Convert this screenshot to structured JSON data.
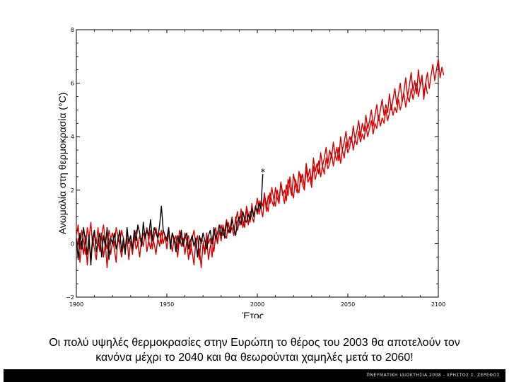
{
  "chart_data": {
    "type": "line",
    "ylabel": "Ανωμαλία στη θερμοκρασία (°C)",
    "xlabel": "Έτος",
    "xlim": [
      1900,
      2100
    ],
    "ylim": [
      -2,
      8
    ],
    "x_ticks": [
      "1900",
      "1950",
      "2000",
      "2050",
      "2100"
    ],
    "y_ticks": [
      "−2",
      "0",
      "2",
      "4",
      "6",
      "8"
    ],
    "grid": false,
    "annotation": {
      "label": "*",
      "x": 2003,
      "y": 2.6
    },
    "series": [
      {
        "color": "#000000",
        "step": 1,
        "x_start": 1900,
        "values": [
          0.2,
          -0.6,
          0.4,
          -0.2,
          0.6,
          0.1,
          -0.4,
          0.3,
          -0.8,
          0.2,
          0.5,
          -0.3,
          0.1,
          0.4,
          -0.5,
          0.3,
          -0.1,
          0.6,
          -0.6,
          0.2,
          0.0,
          0.4,
          -0.2,
          0.1,
          0.5,
          -0.3,
          0.2,
          -0.4,
          0.6,
          0.0,
          0.3,
          -0.2,
          0.5,
          0.1,
          0.7,
          0.4,
          -0.1,
          0.8,
          0.2,
          0.5,
          0.3,
          0.9,
          0.1,
          0.6,
          0.4,
          0.2,
          0.7,
          1.4,
          0.5,
          0.3,
          0.1,
          0.6,
          -0.2,
          0.4,
          0.2,
          -0.3,
          0.3,
          0.0,
          0.5,
          -0.1,
          0.2,
          0.4,
          -0.2,
          0.1,
          0.3,
          -0.1,
          0.2,
          -0.5,
          0.3,
          0.0,
          0.4,
          0.1,
          -0.2,
          0.3,
          0.5,
          0.0,
          0.6,
          0.2,
          0.4,
          0.7,
          0.3,
          0.6,
          0.2,
          0.8,
          0.5,
          0.4,
          0.9,
          0.6,
          0.3,
          0.8,
          1.0,
          0.7,
          1.2,
          0.9,
          0.8,
          1.1,
          0.9,
          1.3,
          1.0,
          1.4,
          1.2,
          1.5,
          1.3,
          2.6
        ]
      },
      {
        "color": "#e00000",
        "step": 1,
        "x_start": 1900,
        "values": [
          0.3,
          0.7,
          -0.2,
          0.5,
          0.1,
          -0.4,
          0.6,
          0.2,
          0.8,
          -0.1,
          0.4,
          0.0,
          0.6,
          -0.3,
          0.3,
          0.7,
          0.1,
          -0.2,
          0.5,
          0.2,
          0.4,
          -0.1,
          0.6,
          0.3,
          0.0,
          0.5,
          0.2,
          -0.2,
          0.4,
          0.1,
          0.3,
          -0.3,
          0.2,
          0.5,
          -0.1,
          0.3,
          0.0,
          0.4,
          0.2,
          0.6,
          0.1,
          0.5,
          -0.2,
          0.3,
          0.6,
          0.2,
          0.4,
          0.0,
          0.5,
          0.3,
          0.2,
          0.6,
          -0.1,
          0.4,
          0.1,
          0.3,
          -0.2,
          0.5,
          0.2,
          0.0,
          0.4,
          0.1,
          0.3,
          -0.4,
          0.2,
          0.5,
          0.0,
          0.3,
          -0.6,
          0.2,
          0.1,
          -0.3,
          0.4,
          0.0,
          0.2,
          -0.5,
          0.3,
          0.6,
          0.1,
          0.4,
          0.7,
          0.3,
          0.5,
          0.9,
          0.4,
          0.6,
          1.0,
          0.5,
          0.8,
          1.2,
          0.7,
          1.3,
          0.9,
          0.6,
          1.4,
          1.1,
          0.8,
          1.5,
          1.0,
          1.3,
          1.7,
          1.1,
          1.6,
          1.4,
          1.9,
          1.2,
          1.8,
          1.5,
          2.1,
          1.7,
          1.4,
          2.0,
          1.6,
          2.3,
          1.9,
          1.5,
          2.2,
          1.8,
          2.5,
          2.0,
          1.7,
          2.4,
          2.1,
          1.9,
          2.6,
          2.2,
          2.0,
          2.8,
          2.3,
          2.5,
          2.1,
          2.9,
          2.4,
          2.7,
          3.1,
          2.5,
          2.9,
          2.6,
          3.2,
          2.8,
          3.0,
          3.4,
          2.9,
          3.3,
          3.1,
          3.6,
          3.0,
          3.5,
          3.2,
          3.8,
          3.4,
          3.6,
          4.0,
          3.5,
          3.9,
          3.7,
          4.2,
          3.8,
          4.1,
          3.9,
          4.4,
          4.0,
          4.3,
          4.6,
          4.1,
          4.5,
          4.3,
          4.8,
          4.4,
          4.7,
          4.5,
          5.0,
          4.6,
          4.9,
          5.2,
          4.8,
          5.1,
          4.9,
          5.4,
          5.0,
          5.3,
          5.6,
          5.1,
          5.5,
          5.3,
          5.8,
          5.4,
          5.7,
          6.0,
          5.5,
          5.9,
          6.2,
          5.6,
          6.0,
          6.4,
          5.8,
          6.3,
          6.7,
          6.1,
          6.5,
          6.9,
          6.2,
          6.6,
          6.3
        ]
      },
      {
        "color": "#cc0000",
        "step": 1,
        "x_start": 1900,
        "values": [
          -0.3,
          0.2,
          -0.7,
          0.1,
          -0.4,
          0.3,
          -0.8,
          0.0,
          -0.5,
          0.2,
          -0.2,
          -0.6,
          0.1,
          -0.3,
          0.4,
          -0.5,
          0.0,
          -0.9,
          0.2,
          -0.4,
          0.1,
          -0.2,
          -0.7,
          0.3,
          -0.1,
          -0.5,
          0.0,
          -0.3,
          0.2,
          -0.6,
          0.1,
          -0.4,
          0.3,
          -0.2,
          0.0,
          -0.5,
          0.2,
          -0.1,
          0.4,
          -0.3,
          0.1,
          -0.2,
          0.3,
          0.0,
          -0.4,
          0.2,
          -0.1,
          0.5,
          0.0,
          0.3,
          -0.2,
          0.4,
          0.1,
          -0.3,
          0.2,
          0.0,
          -0.5,
          0.3,
          -0.1,
          0.2,
          -0.4,
          0.1,
          -0.6,
          0.0,
          -0.3,
          -0.8,
          0.1,
          -0.5,
          -0.2,
          -0.9,
          0.0,
          -0.4,
          0.2,
          -0.6,
          -0.1,
          0.1,
          -0.3,
          0.3,
          0.0,
          0.5,
          0.1,
          0.7,
          0.3,
          0.2,
          0.8,
          0.4,
          0.6,
          0.3,
          1.0,
          0.5,
          0.8,
          1.1,
          0.6,
          0.9,
          1.3,
          0.7,
          1.2,
          1.0,
          0.8,
          1.4,
          1.1,
          1.6,
          1.3,
          1.0,
          1.8,
          1.5,
          1.2,
          1.9,
          1.6,
          1.4,
          2.1,
          1.7,
          1.5,
          2.3,
          1.8,
          2.0,
          1.6,
          2.4,
          2.1,
          1.8,
          2.6,
          2.2,
          1.9,
          2.7,
          2.3,
          2.6,
          2.1,
          3.0,
          2.5,
          2.8,
          2.3,
          3.2,
          2.7,
          3.0,
          2.6,
          3.4,
          2.9,
          3.2,
          3.6,
          3.0,
          3.5,
          3.2,
          3.8,
          3.3,
          3.6,
          3.1,
          4.0,
          3.5,
          3.8,
          4.2,
          3.6,
          4.0,
          3.8,
          4.4,
          3.9,
          4.2,
          4.6,
          4.0,
          4.5,
          4.2,
          4.8,
          4.3,
          4.6,
          5.0,
          4.4,
          4.8,
          5.2,
          4.6,
          5.0,
          5.4,
          4.8,
          5.2,
          4.9,
          5.6,
          5.0,
          5.4,
          5.8,
          5.2,
          5.6,
          6.0,
          5.3,
          5.7,
          6.2,
          5.5,
          5.9,
          6.4,
          5.7,
          6.1,
          5.6,
          6.5,
          5.9,
          6.3,
          5.4,
          6.0,
          5.6
        ]
      }
    ]
  },
  "caption": {
    "line1": "Οι πολύ υψηλές θερμοκρασίες στην Ευρώπη το θέρος του 2003 θα αποτελούν τον",
    "line2": "κανόνα μέχρι το 2040 και θα θεωρούνται χαμηλές μετά το 2060!"
  },
  "footer": {
    "text": "ΠΝΕΥΜΑΤΙΚΗ ΙΔΙΟΚΤΗΣΙΑ 2008 - ΧΡΗΣΤΟΣ Σ. ΖΕΡΕΦΟΣ"
  }
}
